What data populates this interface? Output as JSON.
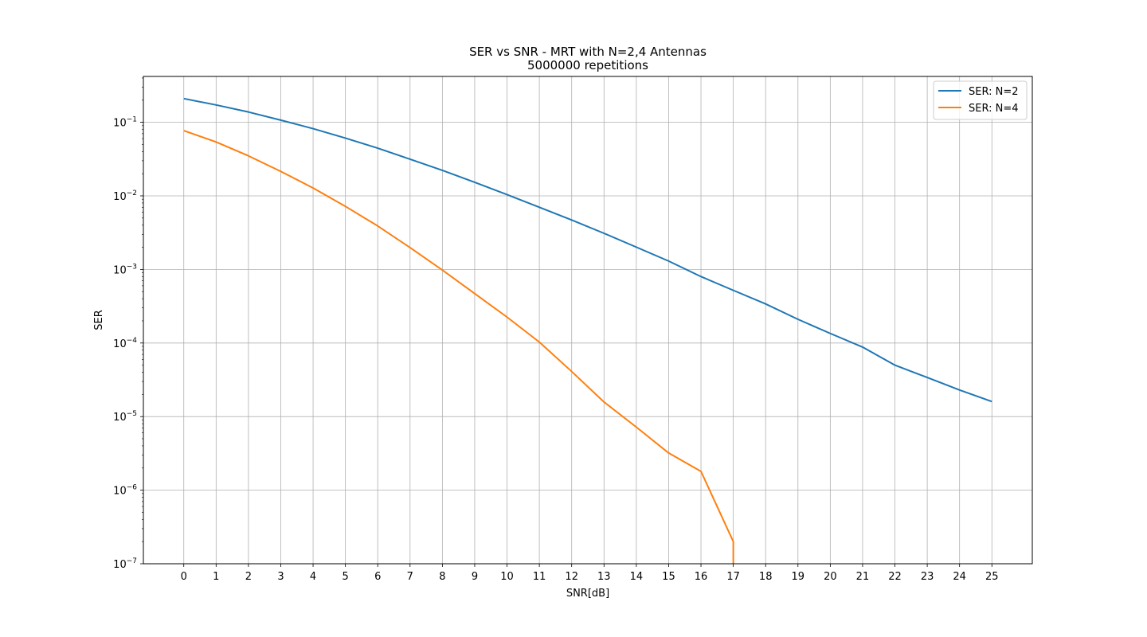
{
  "chart_data": {
    "type": "line",
    "title": "SER vs SNR - MRT with N=2,4 Antennas",
    "subtitle": "5000000 repetitions",
    "xlabel": "SNR[dB]",
    "ylabel": "SER",
    "y_scale": "log",
    "xlim": [
      -1.25,
      26.25
    ],
    "ylim": [
      1e-07,
      0.42
    ],
    "x_ticks": [
      0,
      1,
      2,
      3,
      4,
      5,
      6,
      7,
      8,
      9,
      10,
      11,
      12,
      13,
      14,
      15,
      16,
      17,
      18,
      19,
      20,
      21,
      22,
      23,
      24,
      25
    ],
    "y_ticks": [
      {
        "value": 1e-07,
        "base": "10",
        "exp": "−7"
      },
      {
        "value": 1e-06,
        "base": "10",
        "exp": "−6"
      },
      {
        "value": 1e-05,
        "base": "10",
        "exp": "−5"
      },
      {
        "value": 0.0001,
        "base": "10",
        "exp": "−4"
      },
      {
        "value": 0.001,
        "base": "10",
        "exp": "−3"
      },
      {
        "value": 0.01,
        "base": "10",
        "exp": "−2"
      },
      {
        "value": 0.1,
        "base": "10",
        "exp": "−1"
      }
    ],
    "grid": true,
    "legend_position": "top-right",
    "series": [
      {
        "name": "SER: N=2",
        "color": "#1f77b4",
        "x": [
          0,
          1,
          2,
          3,
          4,
          5,
          6,
          7,
          8,
          9,
          10,
          11,
          12,
          13,
          14,
          15,
          16,
          17,
          18,
          19,
          20,
          21,
          22,
          23,
          24,
          25
        ],
        "values": [
          0.21,
          0.172,
          0.138,
          0.107,
          0.082,
          0.061,
          0.0445,
          0.0315,
          0.0222,
          0.0153,
          0.0104,
          0.007,
          0.0047,
          0.0031,
          0.00201,
          0.0013,
          0.0008,
          0.00052,
          0.00034,
          0.00021,
          0.000135,
          8.8e-05,
          5e-05,
          3.4e-05,
          2.3e-05,
          1.6e-05
        ]
      },
      {
        "name": "SER: N=4",
        "color": "#ff7f0e",
        "x": [
          0,
          1,
          2,
          3,
          4,
          5,
          6,
          7,
          8,
          9,
          10,
          11,
          12,
          13,
          14,
          15,
          16,
          17,
          17
        ],
        "values": [
          0.077,
          0.054,
          0.035,
          0.0215,
          0.0128,
          0.0072,
          0.0039,
          0.00198,
          0.00098,
          0.00047,
          0.000225,
          0.000103,
          4.1e-05,
          1.58e-05,
          7.2e-06,
          3.2e-06,
          1.8e-06,
          2e-07,
          1e-07
        ]
      }
    ]
  }
}
